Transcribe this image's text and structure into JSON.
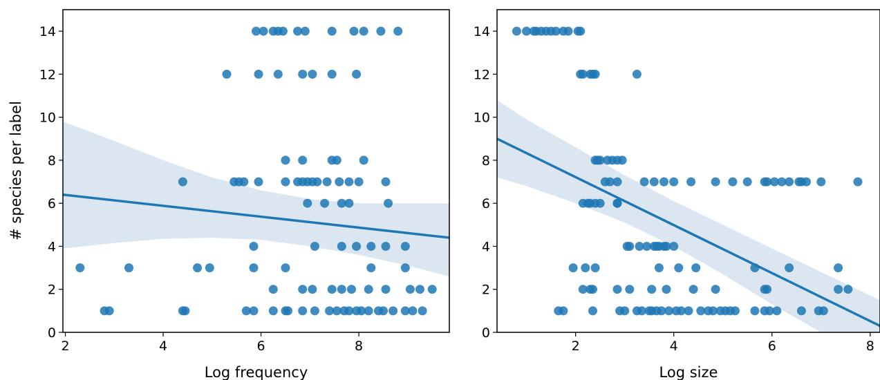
{
  "colors": {
    "points": "#1f77b4",
    "line": "#1f77b4",
    "band": "#dbe6f1",
    "frame": "#000000"
  },
  "shared_ylabel": "# species per label",
  "chart_data": [
    {
      "type": "scatter",
      "title": "",
      "xlabel": "Log frequency",
      "ylabel": "# species per label",
      "xlim": [
        1.95,
        9.85
      ],
      "ylim": [
        0,
        15
      ],
      "xticks": [
        2,
        4,
        6,
        8
      ],
      "yticks": [
        0,
        2,
        4,
        6,
        8,
        10,
        12,
        14
      ],
      "grid": false,
      "regression": {
        "line": [
          [
            1.95,
            6.4
          ],
          [
            9.85,
            4.4
          ]
        ],
        "ci_upper": [
          [
            1.95,
            9.8
          ],
          [
            3,
            8.9
          ],
          [
            4,
            8.0
          ],
          [
            5,
            7.2
          ],
          [
            6,
            6.6
          ],
          [
            7,
            6.2
          ],
          [
            8,
            6.0
          ],
          [
            9,
            6.0
          ],
          [
            9.85,
            6.0
          ]
        ],
        "ci_lower": [
          [
            1.95,
            3.9
          ],
          [
            3,
            4.15
          ],
          [
            4,
            4.35
          ],
          [
            5,
            4.4
          ],
          [
            6,
            4.3
          ],
          [
            7,
            4.0
          ],
          [
            8,
            3.6
          ],
          [
            9,
            3.1
          ],
          [
            9.85,
            2.6
          ]
        ]
      },
      "points": {
        "x": [
          5.9,
          6.05,
          6.25,
          6.35,
          6.45,
          6.75,
          6.9,
          7.45,
          7.9,
          8.1,
          8.45,
          8.8,
          5.3,
          5.95,
          6.35,
          6.85,
          7.05,
          7.45,
          7.95,
          6.5,
          6.85,
          7.45,
          7.55,
          8.1,
          4.4,
          5.45,
          5.55,
          5.65,
          5.95,
          6.5,
          6.75,
          6.85,
          6.95,
          7.05,
          7.15,
          7.35,
          7.6,
          7.8,
          8.0,
          8.55,
          6.95,
          7.3,
          7.65,
          7.8,
          8.6,
          5.85,
          7.1,
          7.65,
          7.95,
          8.25,
          8.55,
          8.95,
          2.3,
          3.3,
          4.7,
          4.95,
          5.85,
          6.5,
          8.25,
          8.95,
          6.25,
          6.85,
          7.05,
          7.45,
          7.65,
          7.85,
          8.2,
          8.55,
          9.05,
          9.25,
          9.5,
          2.8,
          2.9,
          4.4,
          4.45,
          5.7,
          5.85,
          6.25,
          6.5,
          6.55,
          6.85,
          7.1,
          7.4,
          7.55,
          7.7,
          7.8,
          7.95,
          8.05,
          8.2,
          8.4,
          8.5,
          8.7,
          8.95,
          9.1,
          9.3
        ],
        "y": [
          14,
          14,
          14,
          14,
          14,
          14,
          14,
          14,
          14,
          14,
          14,
          14,
          12,
          12,
          12,
          12,
          12,
          12,
          12,
          8,
          8,
          8,
          8,
          8,
          7,
          7,
          7,
          7,
          7,
          7,
          7,
          7,
          7,
          7,
          7,
          7,
          7,
          7,
          7,
          7,
          6,
          6,
          6,
          6,
          6,
          4,
          4,
          4,
          4,
          4,
          4,
          4,
          3,
          3,
          3,
          3,
          3,
          3,
          3,
          3,
          2,
          2,
          2,
          2,
          2,
          2,
          2,
          2,
          2,
          2,
          2,
          1,
          1,
          1,
          1,
          1,
          1,
          1,
          1,
          1,
          1,
          1,
          1,
          1,
          1,
          1,
          1,
          1,
          1,
          1,
          1,
          1,
          1,
          1,
          1
        ]
      }
    },
    {
      "type": "scatter",
      "title": "",
      "xlabel": "Log size",
      "ylabel": "",
      "xlim": [
        0.4,
        8.2
      ],
      "ylim": [
        0,
        15
      ],
      "xticks": [
        2,
        4,
        6,
        8
      ],
      "yticks": [
        0,
        2,
        4,
        6,
        8,
        10,
        12,
        14
      ],
      "grid": false,
      "regression": {
        "line": [
          [
            0.4,
            9.0
          ],
          [
            8.2,
            0.3
          ]
        ],
        "ci_upper": [
          [
            0.4,
            10.8
          ],
          [
            1,
            9.9
          ],
          [
            2,
            8.6
          ],
          [
            3,
            7.3
          ],
          [
            4,
            6.1
          ],
          [
            5,
            5.0
          ],
          [
            6,
            3.9
          ],
          [
            7,
            2.8
          ],
          [
            8.2,
            1.5
          ]
        ],
        "ci_lower": [
          [
            0.4,
            7.2
          ],
          [
            1,
            6.8
          ],
          [
            2,
            6.0
          ],
          [
            3,
            5.1
          ],
          [
            4,
            4.0
          ],
          [
            5,
            2.7
          ],
          [
            6,
            1.3
          ],
          [
            7,
            0.0
          ],
          [
            8.2,
            -1.5
          ]
        ]
      },
      "points": {
        "x": [
          0.8,
          1.0,
          1.15,
          1.2,
          1.3,
          1.4,
          1.5,
          1.6,
          1.75,
          1.85,
          2.05,
          2.1,
          2.1,
          2.15,
          2.3,
          2.35,
          2.4,
          3.25,
          2.4,
          2.45,
          2.5,
          2.65,
          2.75,
          2.85,
          2.95,
          2.6,
          2.7,
          2.85,
          3.4,
          3.6,
          3.8,
          4.0,
          4.35,
          4.85,
          5.2,
          5.5,
          5.85,
          5.9,
          6.05,
          6.2,
          6.35,
          6.55,
          6.6,
          6.7,
          7.0,
          7.75,
          2.15,
          2.25,
          2.3,
          2.4,
          2.5,
          2.85,
          2.85,
          3.05,
          3.1,
          3.3,
          3.45,
          3.6,
          3.65,
          3.7,
          3.8,
          3.85,
          4.0,
          1.95,
          2.2,
          2.4,
          3.7,
          4.1,
          4.45,
          5.65,
          6.35,
          7.35,
          2.15,
          2.3,
          2.35,
          2.85,
          3.1,
          3.55,
          3.85,
          4.4,
          4.85,
          5.85,
          5.9,
          7.35,
          7.55,
          1.65,
          1.75,
          2.35,
          2.9,
          3.0,
          3.25,
          3.35,
          3.5,
          3.55,
          3.65,
          3.75,
          3.9,
          4.05,
          4.15,
          4.3,
          4.55,
          4.7,
          4.8,
          4.95,
          5.05,
          5.15,
          5.25,
          5.65,
          5.85,
          5.95,
          6.1,
          6.6,
          6.95,
          7.05
        ],
        "y": [
          14,
          14,
          14,
          14,
          14,
          14,
          14,
          14,
          14,
          14,
          14,
          14,
          12,
          12,
          12,
          12,
          12,
          12,
          8,
          8,
          8,
          8,
          8,
          8,
          8,
          7,
          7,
          7,
          7,
          7,
          7,
          7,
          7,
          7,
          7,
          7,
          7,
          7,
          7,
          7,
          7,
          7,
          7,
          7,
          7,
          7,
          6,
          6,
          6,
          6,
          6,
          6,
          6,
          4,
          4,
          4,
          4,
          4,
          4,
          4,
          4,
          4,
          4,
          3,
          3,
          3,
          3,
          3,
          3,
          3,
          3,
          3,
          2,
          2,
          2,
          2,
          2,
          2,
          2,
          2,
          2,
          2,
          2,
          2,
          2,
          1,
          1,
          1,
          1,
          1,
          1,
          1,
          1,
          1,
          1,
          1,
          1,
          1,
          1,
          1,
          1,
          1,
          1,
          1,
          1,
          1,
          1,
          1,
          1,
          1,
          1,
          1,
          1,
          1
        ]
      }
    }
  ]
}
